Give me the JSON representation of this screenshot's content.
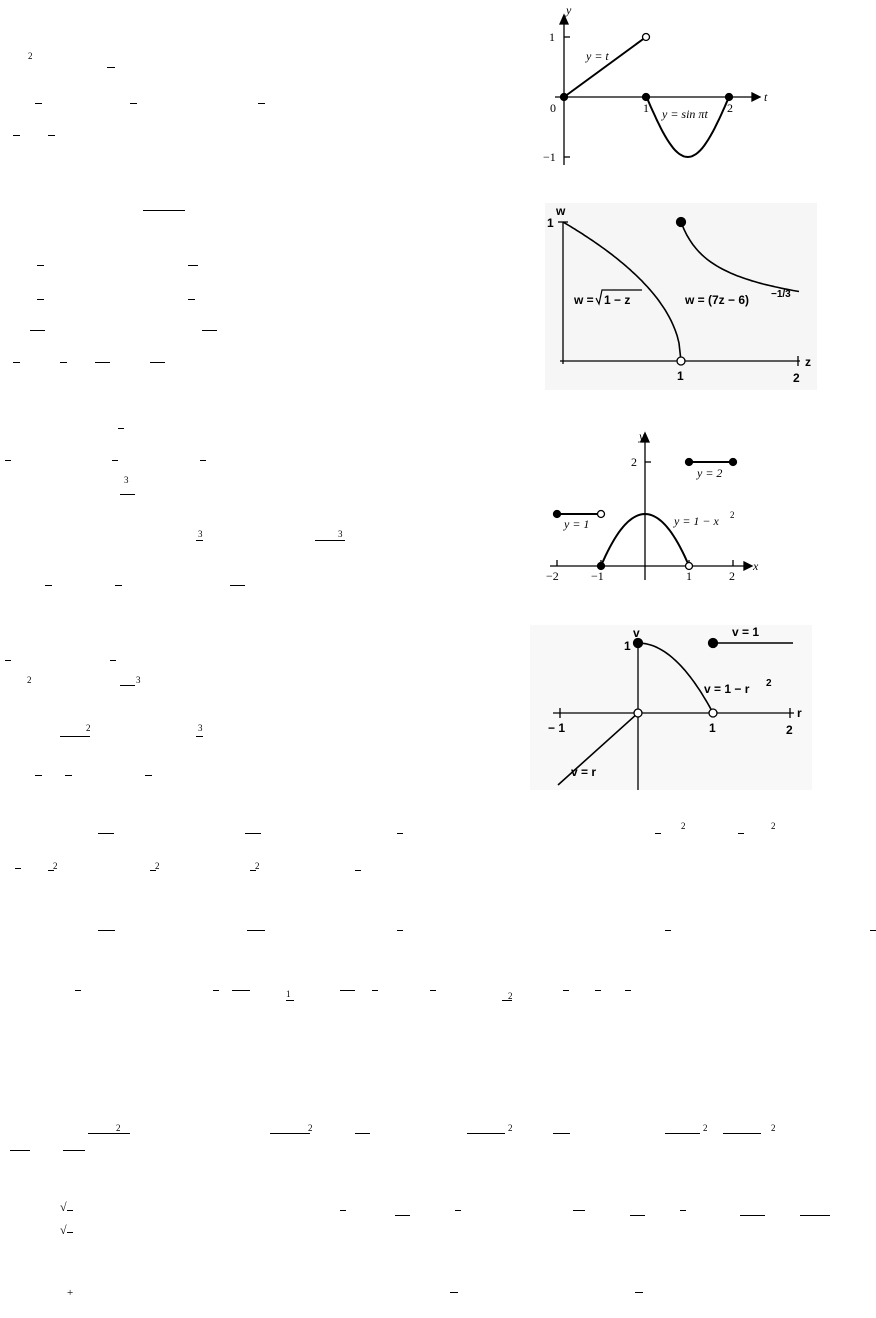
{
  "fragments": {
    "sup2": "2",
    "sup3": "3",
    "one": "1",
    "plus": "+",
    "sqrt": "√"
  },
  "figures": [
    {
      "y_axis": "y",
      "x_axis": "t",
      "ticks": {
        "y1": "1",
        "yneg1": "−1",
        "origin": "0",
        "t1": "1",
        "t2": "2"
      },
      "labels": {
        "line": "y = t",
        "sine": "y = sin πt"
      }
    },
    {
      "y_axis": "w",
      "x_axis": "z",
      "ticks": {
        "w1": "1",
        "z1": "1",
        "z2": "2"
      },
      "labels": {
        "sqrt_left": "w = ",
        "sqrt_radicand": "1 − z",
        "power": "w = (7z − 6)",
        "power_exp": "−1/3"
      }
    },
    {
      "y_axis": "y",
      "x_axis": "x",
      "ticks": {
        "y2": "2",
        "xneg2": "−2",
        "xneg1": "−1",
        "x1": "1",
        "x2": "2"
      },
      "labels": {
        "left": "y = 1",
        "parabola": "y = 1 − x",
        "parabola_exp": "2",
        "right": "y = 2"
      }
    },
    {
      "y_axis": "v",
      "x_axis": "r",
      "ticks": {
        "v1": "1",
        "rneg1": "− 1",
        "r1": "1",
        "r2": "2"
      },
      "labels": {
        "line": "v = r",
        "parabola": "v = 1 − r",
        "parabola_exp": "2",
        "const": "v = 1"
      }
    }
  ]
}
